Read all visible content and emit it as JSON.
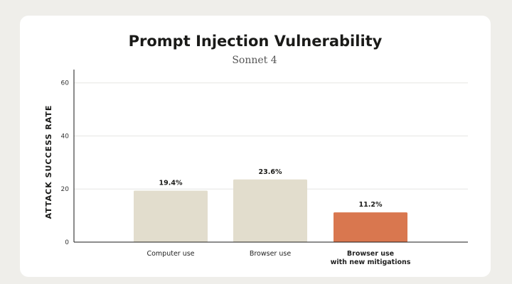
{
  "chart_data": {
    "type": "bar",
    "title": "Prompt Injection Vulnerability",
    "subtitle": "Sonnet 4",
    "ylabel": "ATTACK SUCCESS RATE",
    "xlabel": "",
    "ylim": [
      0,
      65
    ],
    "yticks": [
      0,
      20,
      40,
      60
    ],
    "grid": true,
    "categories": [
      [
        "Computer use"
      ],
      [
        "Browser use"
      ],
      [
        "Browser use",
        "with new mitigations"
      ]
    ],
    "values": [
      19.4,
      23.6,
      11.2
    ],
    "data_labels": [
      "19.4%",
      "23.6%",
      "11.2%"
    ],
    "bar_colors": [
      "#e2ddcd",
      "#e2ddcd",
      "#d9774f"
    ],
    "bold_categories": [
      false,
      false,
      true
    ]
  }
}
